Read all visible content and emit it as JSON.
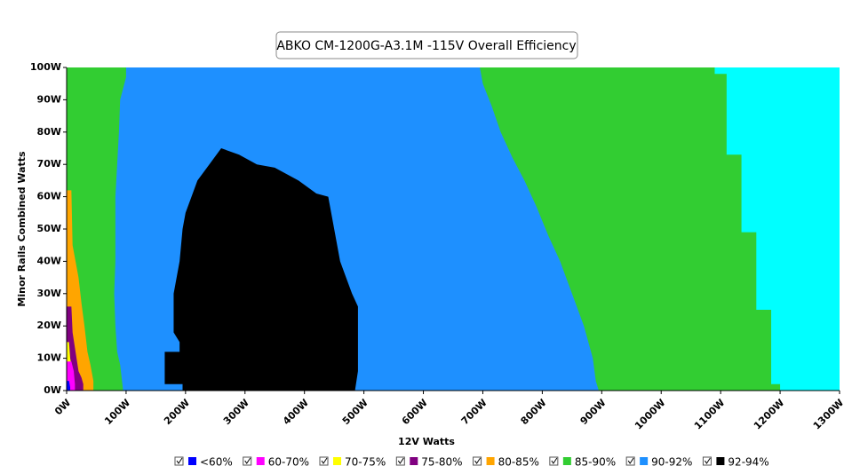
{
  "chart_data": {
    "type": "area",
    "title": "ABKO  CM-1200G-A3.1M -115V Overall Efficiency",
    "xlabel": "12V Watts",
    "ylabel": "Minor Rails Combined Watts",
    "xlim": [
      0,
      1300
    ],
    "ylim": [
      0,
      100
    ],
    "xticks": [
      {
        "value": 0,
        "label": "0W"
      },
      {
        "value": 100,
        "label": "100W"
      },
      {
        "value": 200,
        "label": "200W"
      },
      {
        "value": 300,
        "label": "300W"
      },
      {
        "value": 400,
        "label": "400W"
      },
      {
        "value": 500,
        "label": "500W"
      },
      {
        "value": 600,
        "label": "600W"
      },
      {
        "value": 700,
        "label": "700W"
      },
      {
        "value": 800,
        "label": "800W"
      },
      {
        "value": 900,
        "label": "900W"
      },
      {
        "value": 1000,
        "label": "1000W"
      },
      {
        "value": 1100,
        "label": "1100W"
      },
      {
        "value": 1200,
        "label": "1200W"
      },
      {
        "value": 1300,
        "label": "1300W"
      }
    ],
    "yticks": [
      {
        "value": 0,
        "label": "0W"
      },
      {
        "value": 10,
        "label": "10W"
      },
      {
        "value": 20,
        "label": "20W"
      },
      {
        "value": 30,
        "label": "30W"
      },
      {
        "value": 40,
        "label": "40W"
      },
      {
        "value": 50,
        "label": "50W"
      },
      {
        "value": 60,
        "label": "60W"
      },
      {
        "value": 70,
        "label": "70W"
      },
      {
        "value": 80,
        "label": "80W"
      },
      {
        "value": 90,
        "label": "90W"
      },
      {
        "value": 100,
        "label": "100W"
      }
    ],
    "series": [
      {
        "name": "<60%",
        "color": "#0000ff",
        "x": [
          0,
          0,
          4,
          6,
          6
        ],
        "y": [
          0,
          3,
          3,
          1,
          0
        ]
      },
      {
        "name": "60-70%",
        "color": "#ff00ff",
        "x": [
          0,
          0,
          8,
          12,
          14,
          14
        ],
        "y": [
          0,
          9,
          9,
          6,
          2,
          0
        ]
      },
      {
        "name": "70-75%",
        "color": "#ffff00",
        "x": [
          0,
          0,
          4,
          6,
          10,
          12,
          12
        ],
        "y": [
          0,
          15,
          15,
          10,
          6,
          2,
          0
        ]
      },
      {
        "name": "75-80%",
        "color": "#800080",
        "x": [
          0,
          0,
          8,
          10,
          15,
          20,
          25,
          28,
          28
        ],
        "y": [
          0,
          26,
          26,
          18,
          12,
          6,
          4,
          2,
          0
        ]
      },
      {
        "name": "80-85%",
        "color": "#ffa500",
        "x": [
          0,
          0,
          8,
          10,
          15,
          20,
          25,
          30,
          35,
          40,
          45,
          45
        ],
        "y": [
          0,
          62,
          62,
          45,
          40,
          35,
          27,
          20,
          12,
          8,
          3,
          0
        ]
      },
      {
        "name": "85-90%",
        "color": "#32cd32",
        "x": [
          0,
          0,
          1090,
          1090,
          1110,
          1110,
          1135,
          1135,
          1160,
          1160,
          1185,
          1185,
          1200,
          1200
        ],
        "y": [
          0,
          100,
          100,
          98,
          98,
          73,
          73,
          49,
          49,
          25,
          25,
          2,
          2,
          0
        ]
      },
      {
        "name": "90-92%",
        "color": "#1e90ff",
        "x": [
          95,
          90,
          85,
          82,
          80,
          82,
          82,
          85,
          88,
          90,
          100,
          100,
          695,
          700,
          715,
          730,
          750,
          770,
          790,
          810,
          830,
          850,
          870,
          885,
          890,
          895
        ],
        "y": [
          0,
          8,
          12,
          20,
          30,
          40,
          60,
          70,
          80,
          90,
          97,
          100,
          100,
          95,
          88,
          80,
          72,
          65,
          57,
          48,
          40,
          30,
          20,
          10,
          3,
          0
        ]
      },
      {
        "name": "92-94%",
        "color": "#000000",
        "x": [
          195,
          195,
          165,
          165,
          190,
          190,
          180,
          180,
          190,
          195,
          200,
          210,
          220,
          240,
          260,
          290,
          320,
          350,
          390,
          420,
          440,
          445,
          450,
          460,
          470,
          480,
          490,
          490,
          485
        ],
        "y": [
          0,
          2,
          2,
          12,
          12,
          15,
          18,
          30,
          40,
          50,
          55,
          60,
          65,
          70,
          75,
          73,
          70,
          69,
          65,
          61,
          60,
          55,
          50,
          40,
          35,
          30,
          26,
          6,
          0
        ]
      }
    ]
  }
}
